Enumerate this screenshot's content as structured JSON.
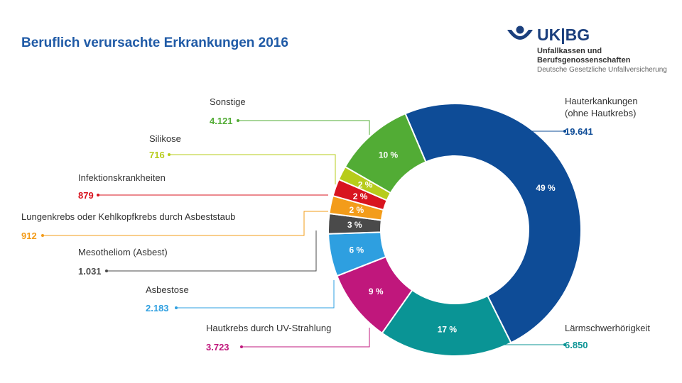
{
  "title": "Beruflich verursachte Erkrankungen 2016",
  "logo": {
    "brand": "UK|BG",
    "line1": "Unfallkassen und",
    "line2": "Berufsgenossenschaften",
    "line3": "Deutsche Gesetzliche Unfallversicherung",
    "icon": "ukbg-logo-icon",
    "color": "#1b3f7d"
  },
  "chart_data": {
    "type": "pie",
    "donut": true,
    "title": "Beruflich verursachte Erkrankungen 2016",
    "slices": [
      {
        "name": "Hauterkankungen (ohne Hautkrebs)",
        "label_lines": [
          "Hauterkankungen",
          "(ohne Hautkrebs)"
        ],
        "value": 19641,
        "value_label": "19.641",
        "percent": 49,
        "pct_label": "49 %",
        "color": "#0e4c97"
      },
      {
        "name": "Lärmschwerhörigkeit",
        "label_lines": [
          "Lärmschwerhörigkeit"
        ],
        "value": 6850,
        "value_label": "6.850",
        "percent": 17,
        "pct_label": "17 %",
        "color": "#0a9495"
      },
      {
        "name": "Hautkrebs durch UV-Strahlung",
        "label_lines": [
          "Hautkrebs durch UV-Strahlung"
        ],
        "value": 3723,
        "value_label": "3.723",
        "percent": 9,
        "pct_label": "9 %",
        "color": "#c0177c"
      },
      {
        "name": "Asbestose",
        "label_lines": [
          "Asbestose"
        ],
        "value": 2183,
        "value_label": "2.183",
        "percent": 6,
        "pct_label": "6 %",
        "color": "#2e9fe0"
      },
      {
        "name": "Mesotheliom (Asbest)",
        "label_lines": [
          "Mesotheliom (Asbest)"
        ],
        "value": 1031,
        "value_label": "1.031",
        "percent": 3,
        "pct_label": "3 %",
        "color": "#4a4a4a"
      },
      {
        "name": "Lungenkrebs oder Kehlkopfkrebs durch Asbeststaub",
        "label_lines": [
          "Lungenkrebs oder Kehlkopfkrebs durch Asbeststaub"
        ],
        "value": 912,
        "value_label": "912",
        "percent": 2,
        "pct_label": "2 %",
        "color": "#f39c1a"
      },
      {
        "name": "Infektionskrankheiten",
        "label_lines": [
          "Infektionskrankheiten"
        ],
        "value": 879,
        "value_label": "879",
        "percent": 2,
        "pct_label": "2 %",
        "color": "#d8141f"
      },
      {
        "name": "Silikose",
        "label_lines": [
          "Silikose"
        ],
        "value": 716,
        "value_label": "716",
        "percent": 2,
        "pct_label": "2 %",
        "color": "#b7cc1b"
      },
      {
        "name": "Sonstige",
        "label_lines": [
          "Sonstige"
        ],
        "value": 4121,
        "value_label": "4.121",
        "percent": 10,
        "pct_label": "10 %",
        "color": "#52ac35"
      }
    ]
  }
}
